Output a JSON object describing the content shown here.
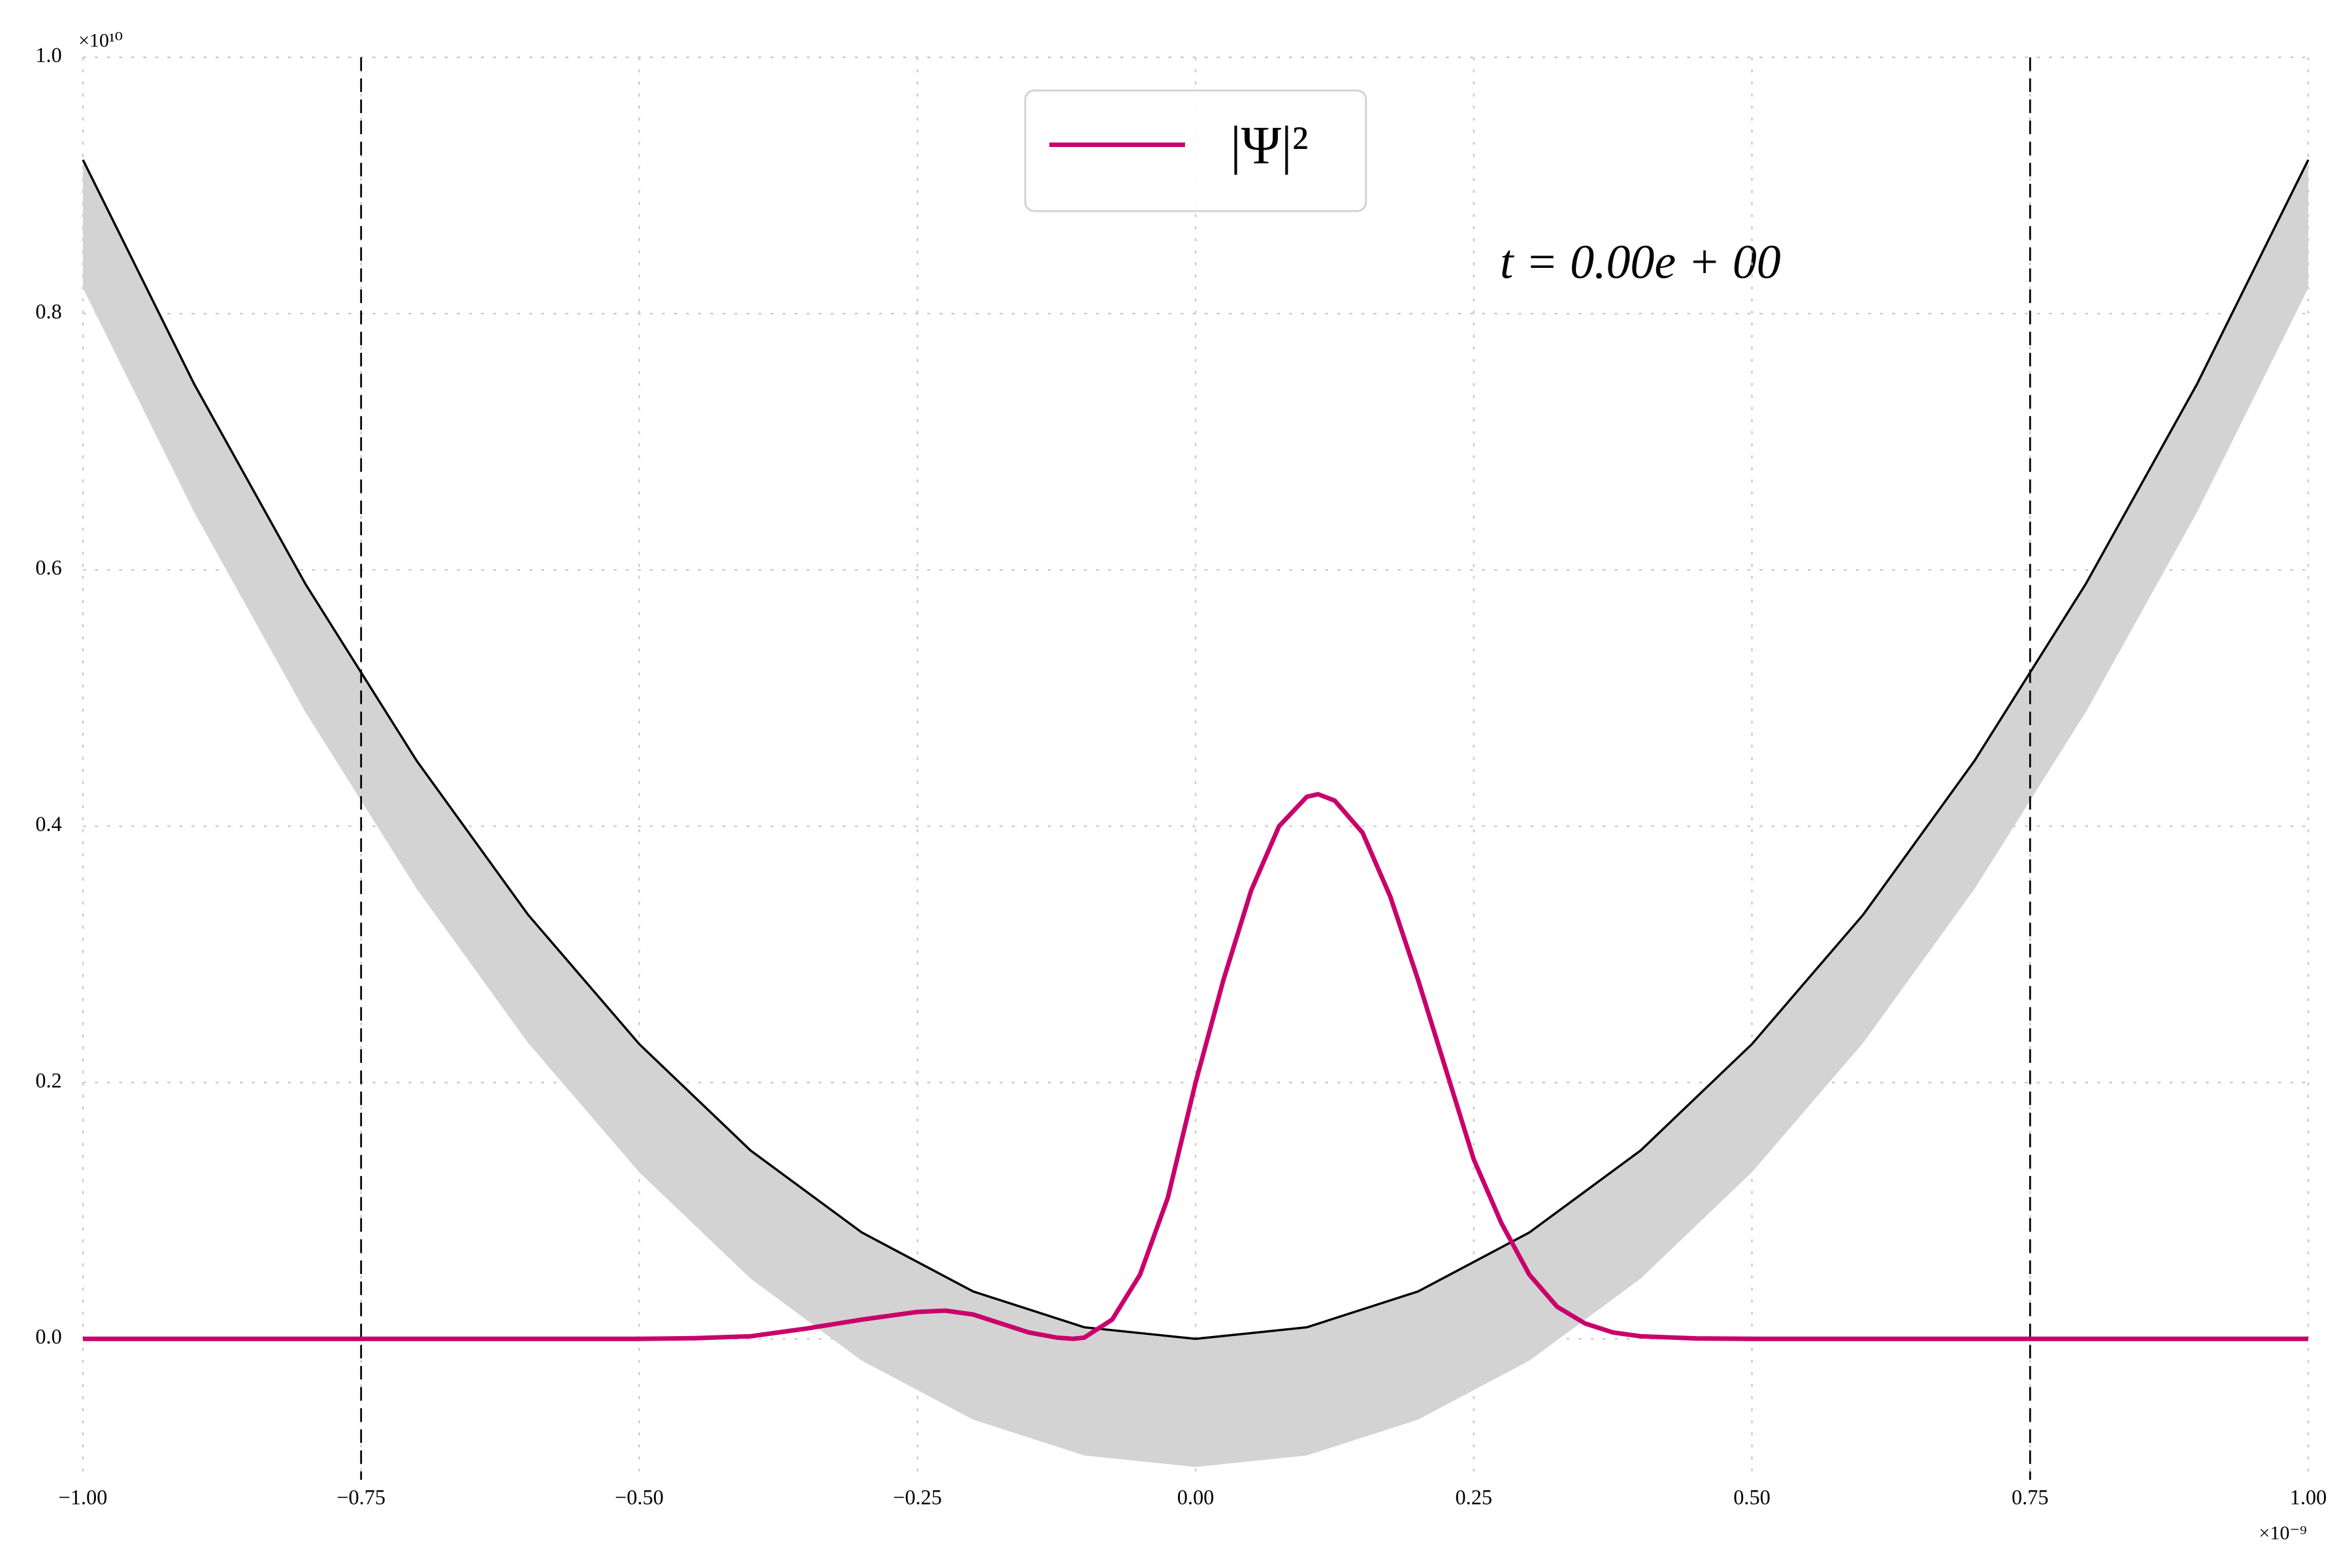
{
  "chart_data": {
    "type": "line",
    "series": [
      {
        "name": "|Ψ|²",
        "color": "#c9006b",
        "x": [
          -1,
          -0.5,
          -0.45,
          -0.4,
          -0.35,
          -0.3,
          -0.25,
          -0.225,
          -0.2,
          -0.175,
          -0.15,
          -0.125,
          -0.11,
          -0.1,
          -0.075,
          -0.05,
          -0.025,
          0,
          0.025,
          0.05,
          0.075,
          0.1,
          0.11,
          0.125,
          0.15,
          0.175,
          0.2,
          0.225,
          0.25,
          0.275,
          0.3,
          0.325,
          0.35,
          0.375,
          0.4,
          0.45,
          0.5,
          1
        ],
        "values": [
          0,
          0,
          0.0005,
          0.002,
          0.008,
          0.015,
          0.021,
          0.022,
          0.019,
          0.012,
          0.005,
          0.001,
          0,
          0.001,
          0.015,
          0.05,
          0.11,
          0.2,
          0.28,
          0.35,
          0.4,
          0.423,
          0.425,
          0.42,
          0.395,
          0.345,
          0.28,
          0.21,
          0.14,
          0.09,
          0.05,
          0.025,
          0.012,
          0.005,
          0.002,
          0.0003,
          0,
          0
        ]
      }
    ],
    "potential": {
      "color": "#000000",
      "x": [
        -1,
        -0.9,
        -0.8,
        -0.7,
        -0.6,
        -0.5,
        -0.4,
        -0.3,
        -0.2,
        -0.1,
        0,
        0.1,
        0.2,
        0.3,
        0.4,
        0.5,
        0.6,
        0.7,
        0.8,
        0.9,
        1
      ],
      "values": [
        0.92,
        0.745,
        0.589,
        0.451,
        0.331,
        0.23,
        0.147,
        0.083,
        0.037,
        0.009,
        0,
        0.009,
        0.037,
        0.083,
        0.147,
        0.23,
        0.331,
        0.451,
        0.589,
        0.745,
        0.92
      ]
    },
    "band": {
      "color": "#d3d3d3",
      "lower": [
        0.82,
        0.645,
        0.489,
        0.351,
        0.231,
        0.13,
        0.047,
        -0.017,
        -0.063,
        -0.091,
        -0.1,
        -0.091,
        -0.063,
        -0.017,
        0.047,
        0.13,
        0.231,
        0.351,
        0.489,
        0.645,
        0.82
      ]
    },
    "vlines": [
      -0.75,
      0.75
    ],
    "annotation": "t = 0.00e + 00",
    "x_offset": "×10⁻⁹",
    "y_offset": "×10¹⁰",
    "xlim": [
      -1,
      1
    ],
    "ylim": [
      -0.11,
      1.0
    ],
    "xticks": [
      {
        "value": -1,
        "label": "−1.00"
      },
      {
        "value": -0.75,
        "label": "−0.75"
      },
      {
        "value": -0.5,
        "label": "−0.50"
      },
      {
        "value": -0.25,
        "label": "−0.25"
      },
      {
        "value": 0,
        "label": "0.00"
      },
      {
        "value": 0.25,
        "label": "0.25"
      },
      {
        "value": 0.5,
        "label": "0.50"
      },
      {
        "value": 0.75,
        "label": "0.75"
      },
      {
        "value": 1,
        "label": "1.00"
      }
    ],
    "yticks": [
      {
        "value": 0,
        "label": "0.0"
      },
      {
        "value": 0.2,
        "label": "0.2"
      },
      {
        "value": 0.4,
        "label": "0.4"
      },
      {
        "value": 0.6,
        "label": "0.6"
      },
      {
        "value": 0.8,
        "label": "0.8"
      },
      {
        "value": 1.0,
        "label": "1.0"
      }
    ],
    "grid": true,
    "legend": "upper center"
  }
}
